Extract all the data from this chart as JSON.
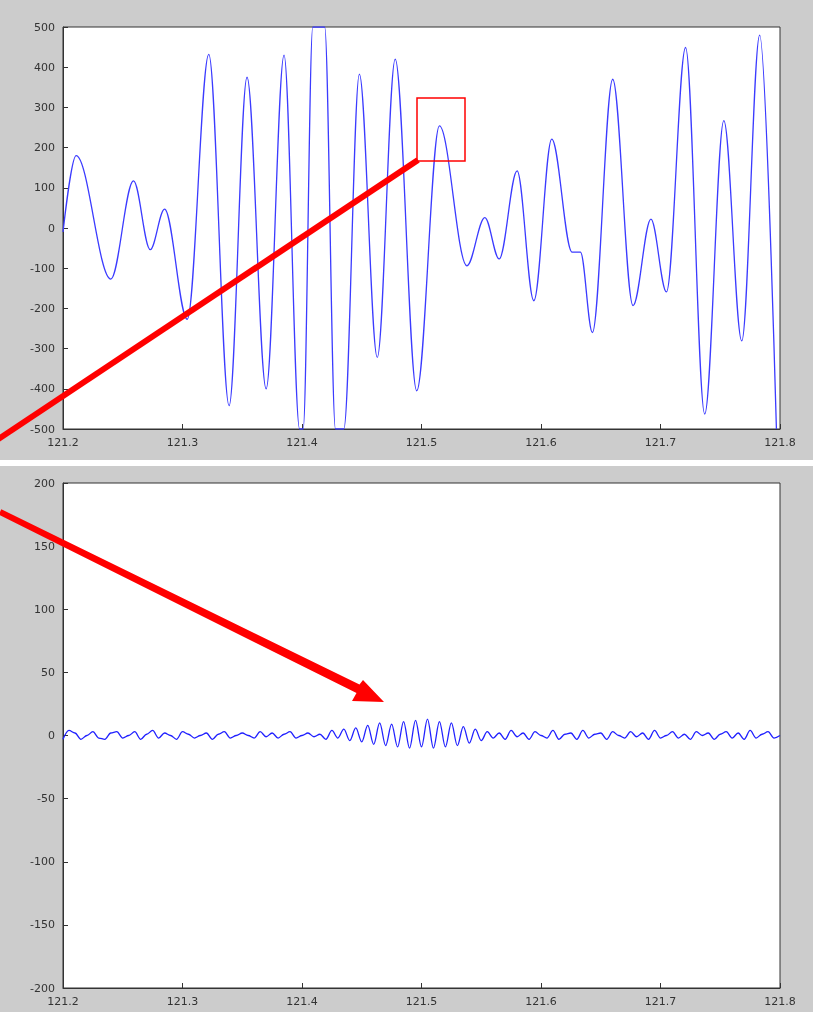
{
  "chart_data": [
    {
      "type": "line",
      "marker": "none",
      "xlim": [
        121.2,
        121.8
      ],
      "ylim": [
        -500,
        500
      ],
      "xticks": [
        121.2,
        121.3,
        121.4,
        121.5,
        121.6,
        121.7,
        121.8
      ],
      "yticks": [
        -500,
        -400,
        -300,
        -200,
        -100,
        0,
        100,
        200,
        300,
        400,
        500
      ],
      "series": [
        {
          "color": "#3b3bff",
          "x": [
            121.2,
            121.211,
            121.24,
            121.259,
            121.273,
            121.285,
            121.304,
            121.322,
            121.339,
            121.354,
            121.37,
            121.385,
            121.398,
            121.401,
            121.409,
            121.419,
            121.428,
            121.435,
            121.448,
            121.463,
            121.478,
            121.496,
            121.515,
            121.538,
            121.553,
            121.565,
            121.58,
            121.594,
            121.609,
            121.626,
            121.633,
            121.643,
            121.66,
            121.677,
            121.692,
            121.705,
            121.721,
            121.737,
            121.753,
            121.768,
            121.783,
            121.797
          ],
          "values": [
            -10,
            180,
            -127,
            117,
            -54,
            47,
            -227,
            432,
            -442,
            375,
            -400,
            430,
            -500,
            -500,
            500,
            500,
            -500,
            -500,
            383,
            -322,
            420,
            -405,
            254,
            -94,
            26,
            -77,
            142,
            -181,
            221,
            -60,
            -60,
            -260,
            370,
            -193,
            22,
            -159,
            449,
            -463,
            267,
            -281,
            480,
            -500
          ]
        }
      ]
    },
    {
      "type": "line",
      "marker": "none",
      "xlim": [
        121.2,
        121.8
      ],
      "ylim": [
        -200,
        200
      ],
      "xticks": [
        121.2,
        121.3,
        121.4,
        121.5,
        121.6,
        121.7,
        121.8
      ],
      "yticks": [
        -200,
        -150,
        -100,
        -50,
        0,
        50,
        100,
        150,
        200
      ],
      "series": [
        {
          "color": "#2020ff",
          "x": [
            121.2,
            121.205,
            121.21,
            121.215,
            121.22,
            121.225,
            121.23,
            121.235,
            121.24,
            121.245,
            121.25,
            121.255,
            121.26,
            121.265,
            121.27,
            121.275,
            121.28,
            121.285,
            121.29,
            121.295,
            121.3,
            121.305,
            121.31,
            121.315,
            121.32,
            121.325,
            121.33,
            121.335,
            121.34,
            121.345,
            121.35,
            121.355,
            121.36,
            121.365,
            121.37,
            121.375,
            121.38,
            121.385,
            121.39,
            121.395,
            121.4,
            121.405,
            121.41,
            121.415,
            121.42,
            121.425,
            121.43,
            121.435,
            121.44,
            121.445,
            121.45,
            121.455,
            121.46,
            121.465,
            121.47,
            121.475,
            121.48,
            121.485,
            121.49,
            121.495,
            121.5,
            121.505,
            121.51,
            121.515,
            121.52,
            121.525,
            121.53,
            121.535,
            121.54,
            121.545,
            121.55,
            121.555,
            121.56,
            121.565,
            121.57,
            121.575,
            121.58,
            121.585,
            121.59,
            121.595,
            121.6,
            121.605,
            121.61,
            121.615,
            121.62,
            121.625,
            121.63,
            121.635,
            121.64,
            121.645,
            121.65,
            121.655,
            121.66,
            121.665,
            121.67,
            121.675,
            121.68,
            121.685,
            121.69,
            121.695,
            121.7,
            121.705,
            121.71,
            121.715,
            121.72,
            121.725,
            121.73,
            121.735,
            121.74,
            121.745,
            121.75,
            121.755,
            121.76,
            121.765,
            121.77,
            121.775,
            121.78,
            121.785,
            121.79,
            121.795,
            121.8
          ],
          "values": [
            -3,
            4,
            2,
            -3,
            0,
            3,
            -2,
            -3,
            2,
            3,
            -2,
            0,
            3,
            -3,
            1,
            4,
            -2,
            2,
            0,
            -3,
            3,
            1,
            -2,
            0,
            2,
            -3,
            1,
            3,
            -2,
            0,
            2,
            0,
            -2,
            3,
            -1,
            2,
            -2,
            1,
            3,
            -2,
            0,
            2,
            -1,
            1,
            -3,
            4,
            -2,
            5,
            -4,
            6,
            -5,
            8,
            -7,
            10,
            -8,
            9,
            -9,
            11,
            -10,
            12,
            -9,
            13,
            -10,
            11,
            -9,
            10,
            -8,
            7,
            -6,
            5,
            -4,
            3,
            -2,
            2,
            -3,
            4,
            -1,
            2,
            -3,
            3,
            0,
            -2,
            4,
            -3,
            1,
            2,
            -3,
            4,
            -2,
            1,
            2,
            -3,
            3,
            0,
            -2,
            3,
            -1,
            2,
            -3,
            4,
            -2,
            0,
            3,
            -2,
            1,
            -3,
            3,
            0,
            2,
            -3,
            1,
            3,
            -2,
            2,
            -3,
            4,
            -2,
            1,
            3,
            -2,
            0
          ]
        }
      ]
    }
  ]
}
